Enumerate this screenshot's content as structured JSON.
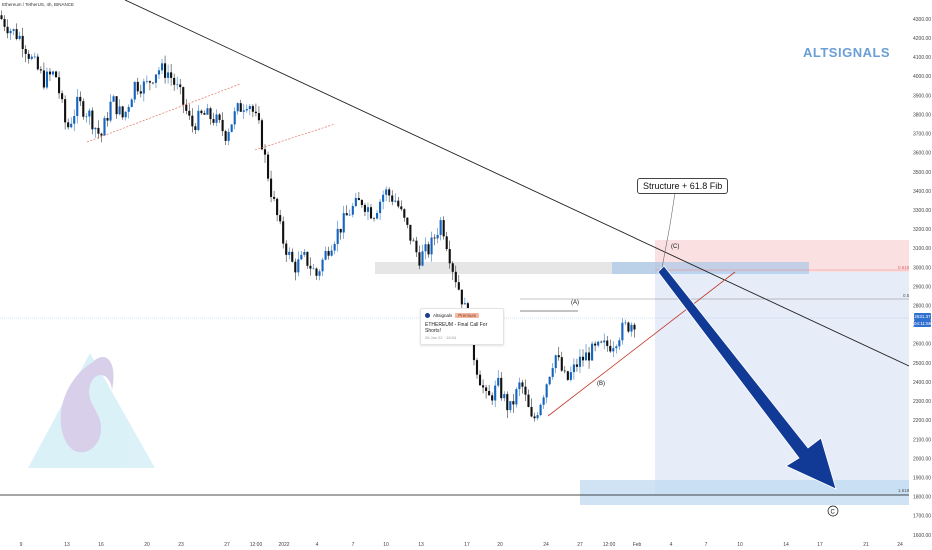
{
  "header": {
    "symbol": "Ethereum / TetherUS, 4h, BINANCE",
    "brand": "ALTSIGNALS"
  },
  "colors": {
    "bull": "#1565c0",
    "bear": "#111111",
    "trendline": "#222222",
    "support": "#e05a4b",
    "target_zone": "#bfd9f2",
    "stop_zone": "#f8d6d6",
    "projection_arrow": "#103a96"
  },
  "annotations": {
    "callout": "Structure + 61.8 Fib",
    "wave_a": "(A)",
    "wave_b": "(B)",
    "wave_c_top": "(C)",
    "wave_c_target": "C",
    "fib_618": "0.618",
    "fib_05": "0.5",
    "fib_1618": "1.618"
  },
  "idea_card": {
    "author": "Altsignals",
    "badge": "Premium",
    "title": "ETHEREUM - Final Call For Shorts!",
    "date": "26 Jan 22 · 16:04"
  },
  "chart_data": {
    "type": "candlestick",
    "title": "",
    "xlabel": "",
    "ylabel": "",
    "ylim": [
      1600,
      4400
    ],
    "grid": false,
    "y_ticks": [
      1600,
      1700,
      1800,
      1900,
      2000,
      2100,
      2200,
      2300,
      2400,
      2500,
      2600,
      2700,
      2800,
      2900,
      3000,
      3100,
      3200,
      3300,
      3400,
      3500,
      3600,
      3700,
      3800,
      3900,
      4000,
      4100,
      4200,
      4300
    ],
    "x_ticks": [
      "9",
      "13",
      "16",
      "20",
      "23",
      "27",
      "12:00",
      "2022",
      "4",
      "7",
      "10",
      "13",
      "17",
      "20",
      "24",
      "27",
      "12:00",
      "Feb",
      "4",
      "7",
      "10",
      "14",
      "17",
      "21",
      "24"
    ],
    "price_labels": [
      "2631.37",
      "04:11:58"
    ],
    "price_key_path": [
      4320,
      4250,
      4200,
      4080,
      3980,
      4020,
      3720,
      3860,
      3800,
      3680,
      3880,
      3780,
      3960,
      3950,
      4040,
      4020,
      3900,
      3740,
      3800,
      3780,
      3700,
      3820,
      3880,
      3720,
      3400,
      3150,
      3000,
      3050,
      2960,
      3100,
      3200,
      3300,
      3350,
      3280,
      3400,
      3350,
      3200,
      3050,
      3100,
      3250,
      3000,
      2800,
      2500,
      2300,
      2380,
      2250,
      2400,
      2180,
      2350,
      2550,
      2400,
      2500,
      2550,
      2580,
      2600,
      2680,
      2720
    ],
    "levels": {
      "fib_618": 2945,
      "fib_05": 2800,
      "fib_1618": 1750,
      "current_price": 2631.37
    },
    "zones": {
      "stop": [
        2945,
        3100
      ],
      "resistance_band": [
        2880,
        2950
      ],
      "target": [
        1700,
        1800
      ]
    },
    "waves": [
      {
        "label": "(A)",
        "price": 2780
      },
      {
        "label": "(B)",
        "price": 2330
      },
      {
        "label": "(C)",
        "price": 3030
      },
      {
        "label": "C",
        "price": 1620
      }
    ]
  }
}
